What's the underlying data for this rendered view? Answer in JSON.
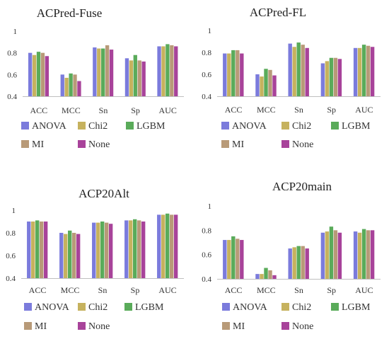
{
  "legend": [
    "ANOVA",
    "Chi2",
    "LGBM",
    "MI",
    "None"
  ],
  "colors": {
    "ANOVA": "#7b7bdc",
    "Chi2": "#c6b25e",
    "LGBM": "#5aab5a",
    "MI": "#b89a78",
    "None": "#a8439a"
  },
  "chart_data": [
    {
      "type": "bar",
      "title": "ACPred-Fuse",
      "categories": [
        "ACC",
        "MCC",
        "Sn",
        "Sp",
        "AUC"
      ],
      "ylim": [
        0.4,
        1
      ],
      "yticks": [
        "0.4",
        "0.6",
        "0.8",
        "1"
      ],
      "series": [
        {
          "name": "ANOVA",
          "values": [
            0.8,
            0.6,
            0.85,
            0.75,
            0.86
          ]
        },
        {
          "name": "Chi2",
          "values": [
            0.78,
            0.57,
            0.84,
            0.73,
            0.86
          ]
        },
        {
          "name": "LGBM",
          "values": [
            0.81,
            0.61,
            0.84,
            0.78,
            0.88
          ]
        },
        {
          "name": "MI",
          "values": [
            0.8,
            0.6,
            0.87,
            0.73,
            0.87
          ]
        },
        {
          "name": "None",
          "values": [
            0.77,
            0.54,
            0.83,
            0.72,
            0.86
          ]
        }
      ]
    },
    {
      "type": "bar",
      "title": "ACPred-FL",
      "categories": [
        "ACC",
        "MCC",
        "Sn",
        "Sp",
        "AUC"
      ],
      "ylim": [
        0.4,
        1
      ],
      "yticks": [
        "0.4",
        "0.6",
        "0.8",
        "1"
      ],
      "series": [
        {
          "name": "ANOVA",
          "values": [
            0.79,
            0.6,
            0.88,
            0.7,
            0.84
          ]
        },
        {
          "name": "Chi2",
          "values": [
            0.79,
            0.58,
            0.85,
            0.72,
            0.84
          ]
        },
        {
          "name": "LGBM",
          "values": [
            0.82,
            0.65,
            0.89,
            0.75,
            0.87
          ]
        },
        {
          "name": "MI",
          "values": [
            0.82,
            0.64,
            0.87,
            0.75,
            0.86
          ]
        },
        {
          "name": "None",
          "values": [
            0.79,
            0.59,
            0.84,
            0.74,
            0.85
          ]
        }
      ]
    },
    {
      "type": "bar",
      "title": "ACP20Alt",
      "categories": [
        "ACC",
        "MCC",
        "Sn",
        "Sp",
        "AUC"
      ],
      "ylim": [
        0.4,
        1
      ],
      "yticks": [
        "0.4",
        "0.6",
        "0.8",
        "1"
      ],
      "series": [
        {
          "name": "ANOVA",
          "values": [
            0.9,
            0.8,
            0.89,
            0.91,
            0.96
          ]
        },
        {
          "name": "Chi2",
          "values": [
            0.9,
            0.79,
            0.89,
            0.91,
            0.96
          ]
        },
        {
          "name": "LGBM",
          "values": [
            0.91,
            0.82,
            0.9,
            0.92,
            0.97
          ]
        },
        {
          "name": "MI",
          "values": [
            0.9,
            0.8,
            0.89,
            0.91,
            0.96
          ]
        },
        {
          "name": "None",
          "values": [
            0.9,
            0.79,
            0.88,
            0.9,
            0.96
          ]
        }
      ]
    },
    {
      "type": "bar",
      "title": "ACP20main",
      "categories": [
        "ACC",
        "MCC",
        "Sn",
        "Sp",
        "AUC"
      ],
      "ylim": [
        0.4,
        1
      ],
      "yticks": [
        "0.4",
        "0.6",
        "0.8",
        "1"
      ],
      "series": [
        {
          "name": "ANOVA",
          "values": [
            0.72,
            0.44,
            0.65,
            0.78,
            0.79
          ]
        },
        {
          "name": "Chi2",
          "values": [
            0.72,
            0.44,
            0.66,
            0.79,
            0.78
          ]
        },
        {
          "name": "LGBM",
          "values": [
            0.75,
            0.49,
            0.67,
            0.83,
            0.81
          ]
        },
        {
          "name": "MI",
          "values": [
            0.73,
            0.47,
            0.67,
            0.8,
            0.8
          ]
        },
        {
          "name": "None",
          "values": [
            0.72,
            0.43,
            0.65,
            0.78,
            0.8
          ]
        }
      ]
    }
  ]
}
